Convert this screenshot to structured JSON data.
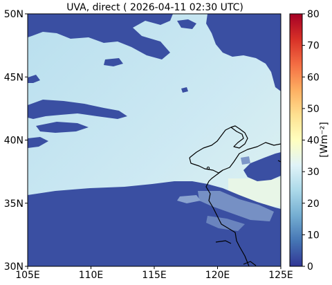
{
  "chart_data": {
    "type": "heatmap",
    "title": "UVA, direct ( 2026-04-11 02:30 UTC)",
    "x_ticks": [
      "105E",
      "110E",
      "115E",
      "120E",
      "125E"
    ],
    "y_ticks": [
      "30N",
      "35N",
      "40N",
      "45N",
      "50N"
    ],
    "xlim": [
      105,
      125
    ],
    "ylim": [
      30,
      50
    ],
    "colorbar": {
      "label": "[Wm⁻²]",
      "ticks": [
        "0",
        "10",
        "20",
        "30",
        "40",
        "50",
        "60",
        "70",
        "80"
      ],
      "range": [
        0,
        80
      ],
      "colormap": "RdYlBu_r"
    },
    "colors": {
      "clear_sky_low": "#c3e4ef",
      "clear_sky_mid": "#d2ecf3",
      "clear_sky_high": "#e6f5ee",
      "cloud": "#3a4fa2",
      "coastline": "#000000"
    }
  }
}
